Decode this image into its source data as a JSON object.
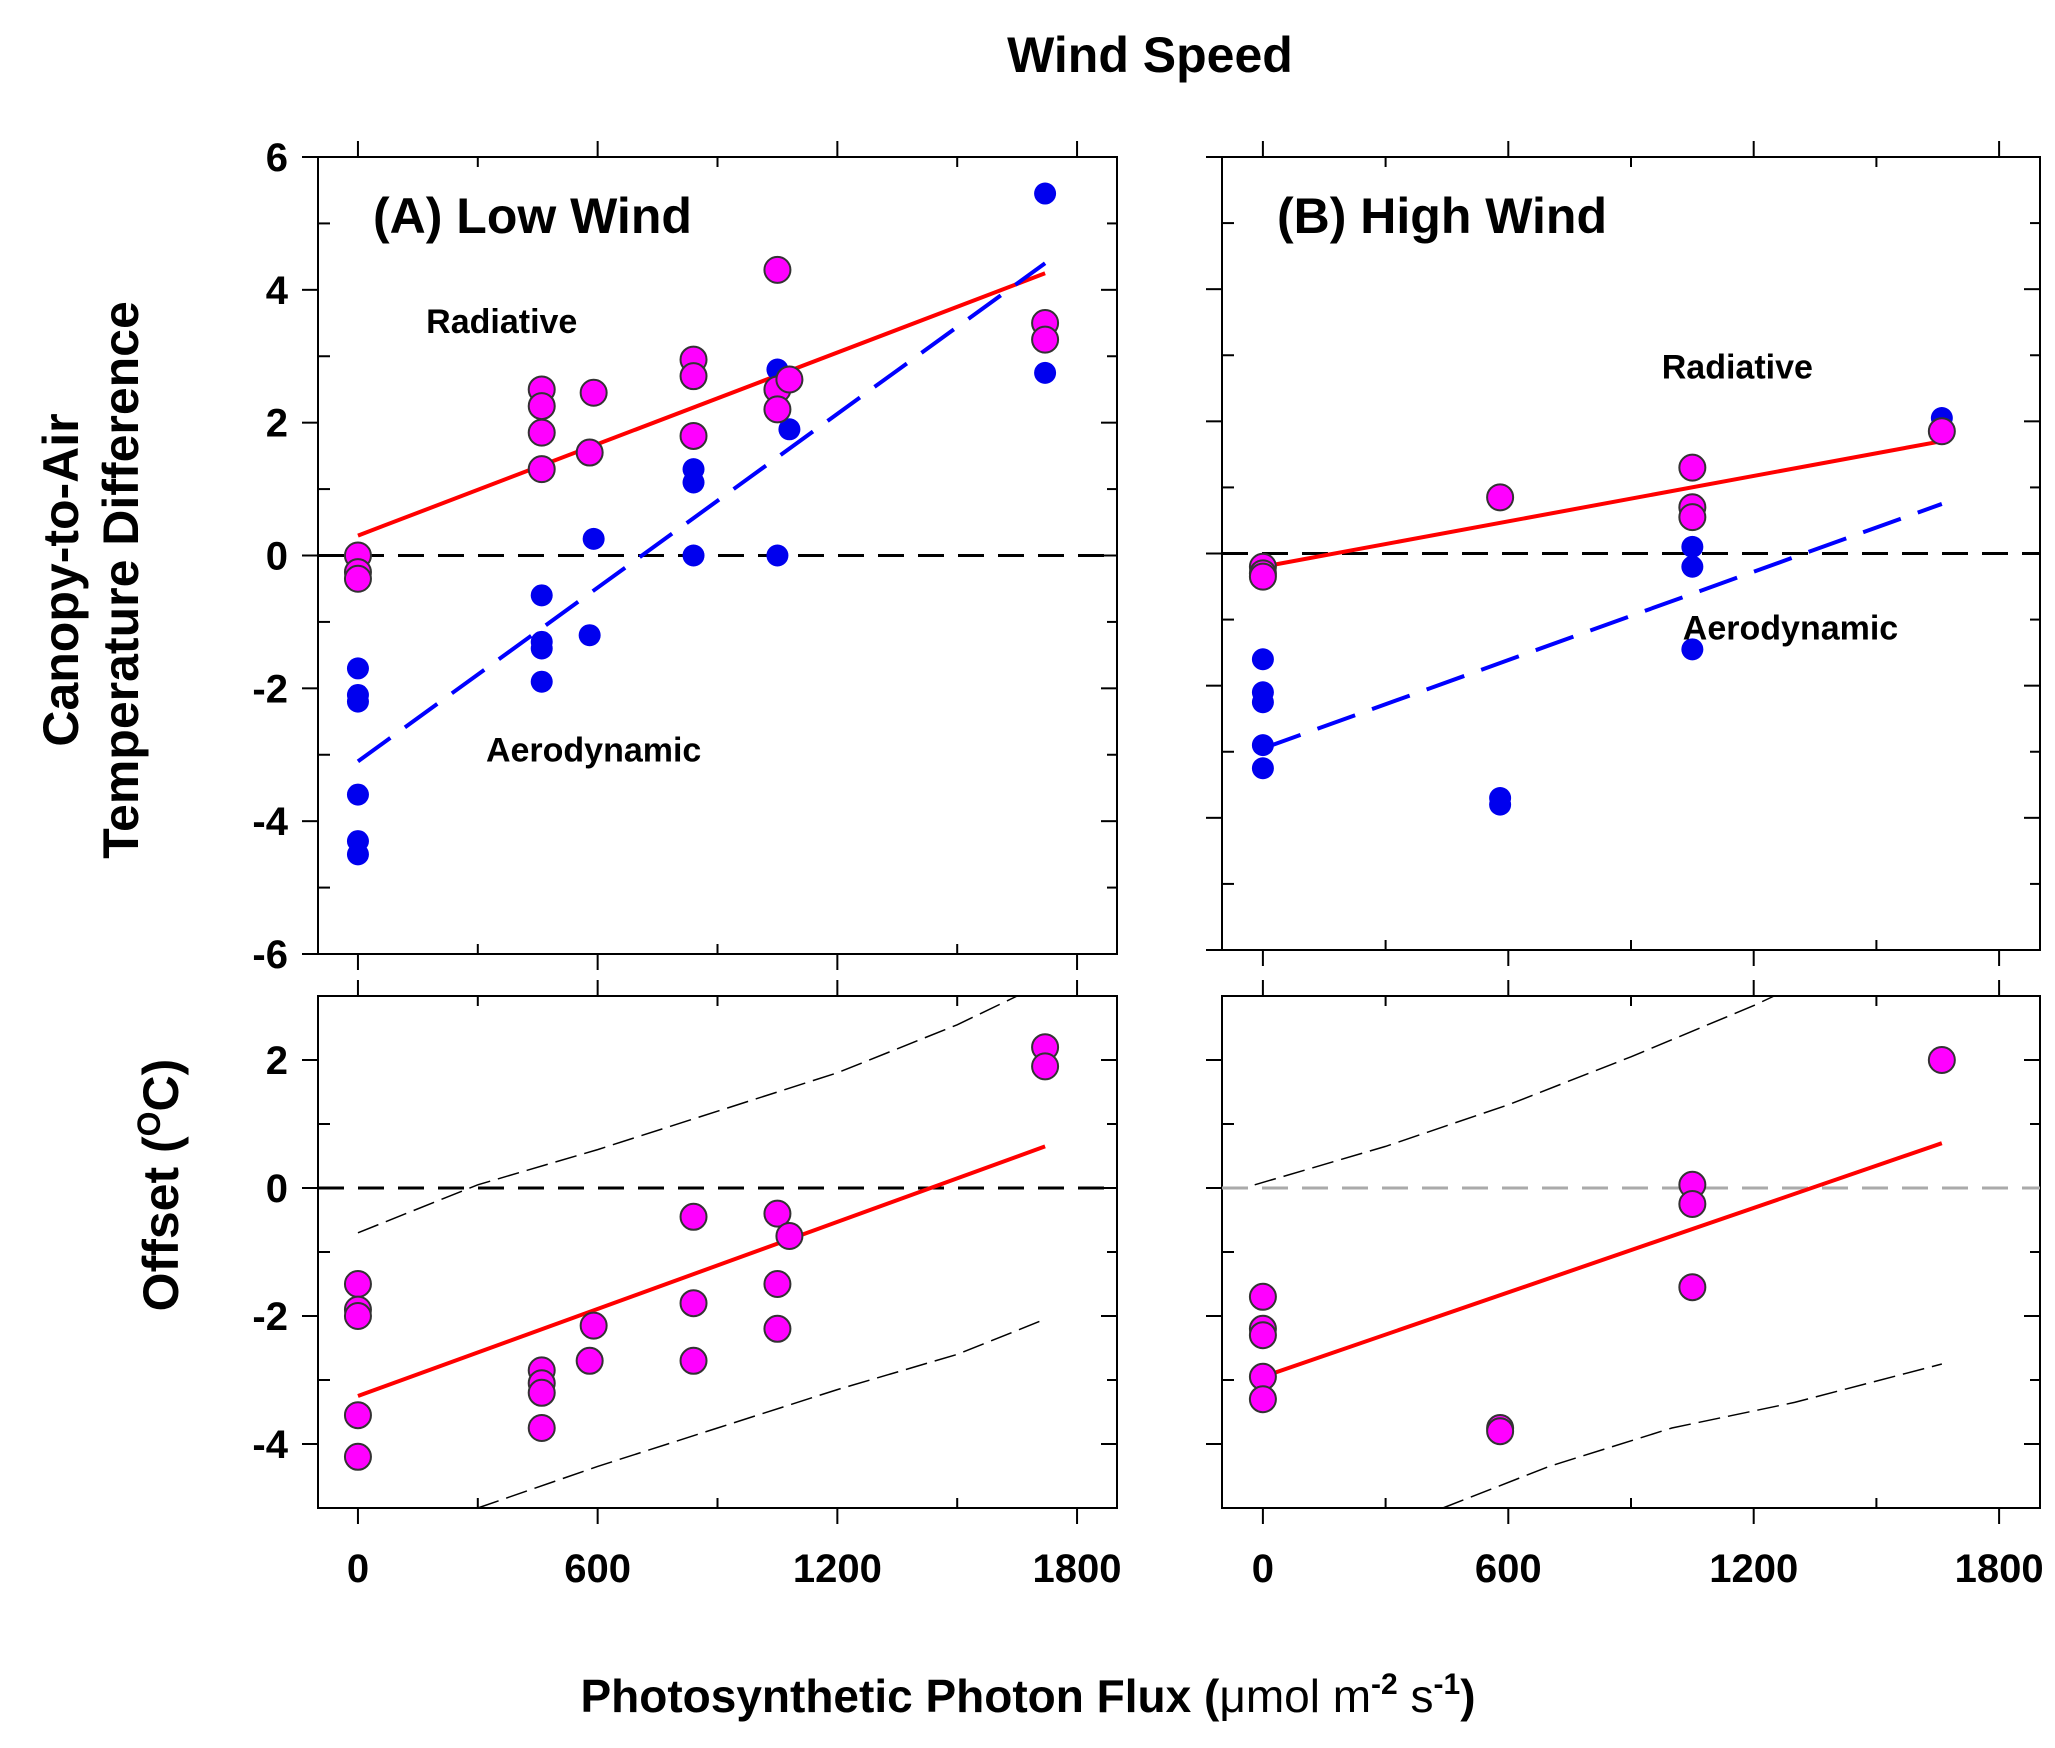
{
  "figure_title": "Wind Speed",
  "ylabel_top_line1": "Canopy-to-Air",
  "ylabel_top_line2": "Temperature Difference",
  "ylabel_bottom": "Offset (",
  "ylabel_bottom_sup": "O",
  "ylabel_bottom_end": "C)",
  "xlabel_main": "Photosynthetic Photon Flux (",
  "xlabel_unit": "μmol m",
  "xlabel_exp1": "-2",
  "xlabel_mid": " s",
  "xlabel_exp2": "-1",
  "xlabel_end": ")",
  "colors": {
    "radiative_marker": "#ff00ff",
    "aerodynamic_marker": "#0000ee",
    "radiative_line": "#ff0000",
    "aerodynamic_line": "#0000ff",
    "zero_line": "#000000",
    "zero_line_gray": "#aaaaaa"
  },
  "chart_data": [
    {
      "id": "A",
      "type": "scatter",
      "title": "(A) Low Wind",
      "xlim": [
        -100,
        1900
      ],
      "ylim": [
        -6,
        6
      ],
      "xticks": [
        0,
        600,
        1200,
        1800
      ],
      "yticks": [
        -6,
        -4,
        -2,
        0,
        2,
        4,
        6
      ],
      "ytick_labels": [
        "-6",
        "-4",
        "-2",
        "0",
        "2",
        "4",
        "6"
      ],
      "annotations": [
        {
          "text": "Radiative",
          "x": 360,
          "y": 3.35
        },
        {
          "text": "Aerodynamic",
          "x": 590,
          "y": -3.1
        }
      ],
      "series": [
        {
          "name": "Radiative",
          "color_key": "radiative_marker",
          "x": [
            0,
            0,
            0,
            460,
            460,
            460,
            460,
            580,
            590,
            840,
            840,
            840,
            1050,
            1050,
            1050,
            1080,
            1720,
            1720
          ],
          "y": [
            0.0,
            -0.25,
            -0.35,
            2.5,
            2.25,
            1.85,
            1.3,
            1.55,
            2.45,
            2.95,
            2.7,
            1.8,
            4.3,
            2.5,
            2.2,
            2.65,
            3.5,
            3.25
          ]
        },
        {
          "name": "Aerodynamic",
          "color_key": "aerodynamic_marker",
          "x": [
            0,
            0,
            0,
            0,
            0,
            0,
            460,
            460,
            460,
            460,
            580,
            590,
            840,
            840,
            840,
            1050,
            1050,
            1080,
            1720,
            1720
          ],
          "y": [
            -1.7,
            -2.1,
            -2.2,
            -3.6,
            -4.3,
            -4.5,
            -0.6,
            -1.3,
            -1.4,
            -1.9,
            -1.2,
            0.25,
            1.3,
            1.1,
            0.0,
            2.8,
            0.0,
            1.9,
            5.45,
            2.75
          ]
        }
      ],
      "fits": [
        {
          "name": "Radiative fit",
          "color_key": "radiative_line",
          "dashed": false,
          "x": [
            0,
            1720
          ],
          "y": [
            0.3,
            4.25
          ]
        },
        {
          "name": "Aerodynamic fit",
          "color_key": "aerodynamic_line",
          "dashed": true,
          "x": [
            0,
            1720
          ],
          "y": [
            -3.1,
            4.4
          ]
        }
      ],
      "zero_line": {
        "y": 0,
        "color_key": "zero_line"
      }
    },
    {
      "id": "B",
      "type": "scatter",
      "title": "(B) High Wind",
      "xlim": [
        -100,
        1900
      ],
      "ylim": [
        -6,
        6
      ],
      "xticks": [
        0,
        600,
        1200,
        1800
      ],
      "yticks": [
        -6,
        -4,
        -2,
        0,
        2,
        4,
        6
      ],
      "ytick_labels": [],
      "annotations": [
        {
          "text": "Radiative",
          "x": 1160,
          "y": 2.65
        },
        {
          "text": "Aerodynamic",
          "x": 1290,
          "y": -1.3
        }
      ],
      "series": [
        {
          "name": "Radiative",
          "color_key": "radiative_marker",
          "x": [
            0,
            0,
            0,
            580,
            1050,
            1050,
            1050,
            1660
          ],
          "y": [
            -0.2,
            -0.3,
            -0.35,
            0.85,
            1.3,
            0.7,
            0.55,
            1.85
          ]
        },
        {
          "name": "Aerodynamic",
          "color_key": "aerodynamic_marker",
          "x": [
            0,
            0,
            0,
            0,
            0,
            580,
            580,
            1050,
            1050,
            1050,
            1660
          ],
          "y": [
            -1.6,
            -2.1,
            -2.25,
            -2.9,
            -3.25,
            -3.7,
            -3.8,
            0.1,
            -0.2,
            -1.45,
            2.05
          ]
        }
      ],
      "fits": [
        {
          "name": "Radiative fit",
          "color_key": "radiative_line",
          "dashed": false,
          "x": [
            0,
            1660
          ],
          "y": [
            -0.2,
            1.7
          ]
        },
        {
          "name": "Aerodynamic fit",
          "color_key": "aerodynamic_line",
          "dashed": true,
          "x": [
            0,
            1660
          ],
          "y": [
            -2.95,
            0.75
          ]
        }
      ],
      "zero_line": {
        "y": 0,
        "color_key": "zero_line"
      }
    },
    {
      "id": "C",
      "type": "scatter",
      "title": "",
      "xlim": [
        -100,
        1900
      ],
      "ylim": [
        -5,
        3
      ],
      "xticks": [
        0,
        600,
        1200,
        1800
      ],
      "xtick_labels": [
        "0",
        "600",
        "1200",
        "1800"
      ],
      "yticks": [
        -4,
        -2,
        0,
        2
      ],
      "ytick_labels": [
        "-4",
        "-2",
        "0",
        "2"
      ],
      "minor_yticks": [
        -5,
        -3,
        -1,
        1,
        3
      ],
      "series": [
        {
          "name": "Offset",
          "color_key": "radiative_marker",
          "x": [
            0,
            0,
            0,
            0,
            0,
            460,
            460,
            460,
            460,
            580,
            590,
            840,
            840,
            840,
            1050,
            1050,
            1050,
            1080,
            1720,
            1720
          ],
          "y": [
            -1.5,
            -1.9,
            -2.0,
            -3.55,
            -4.2,
            -2.85,
            -3.05,
            -3.2,
            -3.75,
            -2.7,
            -2.15,
            -0.45,
            -1.8,
            -2.7,
            -0.4,
            -1.5,
            -2.2,
            -0.75,
            2.2,
            1.9
          ]
        }
      ],
      "fits": [
        {
          "name": "Offset fit",
          "color_key": "radiative_line",
          "dashed": false,
          "x": [
            0,
            1720
          ],
          "y": [
            -3.25,
            0.65
          ]
        }
      ],
      "bands": [
        {
          "name": "upper band",
          "x": [
            0,
            300,
            600,
            900,
            1200,
            1500,
            1650
          ],
          "y": [
            -0.7,
            0.05,
            0.6,
            1.2,
            1.8,
            2.55,
            3.0
          ]
        },
        {
          "name": "lower band",
          "x": [
            300,
            600,
            900,
            1200,
            1500,
            1720
          ],
          "y": [
            -5.0,
            -4.35,
            -3.75,
            -3.15,
            -2.6,
            -2.05
          ]
        }
      ],
      "zero_line": {
        "y": 0,
        "color_key": "zero_line"
      }
    },
    {
      "id": "D",
      "type": "scatter",
      "title": "",
      "xlim": [
        -100,
        1900
      ],
      "ylim": [
        -5,
        3
      ],
      "xticks": [
        0,
        600,
        1200,
        1800
      ],
      "xtick_labels": [
        "0",
        "600",
        "1200",
        "1800"
      ],
      "yticks": [
        -4,
        -2,
        0,
        2
      ],
      "ytick_labels": [],
      "minor_yticks": [
        -5,
        -3,
        -1,
        1,
        3
      ],
      "series": [
        {
          "name": "Offset",
          "color_key": "radiative_marker",
          "x": [
            0,
            0,
            0,
            0,
            0,
            580,
            580,
            1050,
            1050,
            1050,
            1660
          ],
          "y": [
            -1.7,
            -2.2,
            -2.3,
            -2.95,
            -3.3,
            -3.75,
            -3.8,
            0.05,
            -0.25,
            -1.55,
            2.0
          ]
        }
      ],
      "fits": [
        {
          "name": "Offset fit",
          "color_key": "radiative_line",
          "dashed": false,
          "x": [
            0,
            1660
          ],
          "y": [
            -2.95,
            0.7
          ]
        }
      ],
      "bands": [
        {
          "name": "upper band",
          "x": [
            -20,
            300,
            600,
            900,
            1200,
            1250
          ],
          "y": [
            0.05,
            0.65,
            1.3,
            2.05,
            2.85,
            3.0
          ]
        },
        {
          "name": "lower band",
          "x": [
            440,
            700,
            1000,
            1300,
            1660
          ],
          "y": [
            -5.0,
            -4.35,
            -3.75,
            -3.35,
            -2.75
          ]
        }
      ],
      "zero_line": {
        "y": 0,
        "color_key": "zero_line_gray"
      }
    }
  ]
}
